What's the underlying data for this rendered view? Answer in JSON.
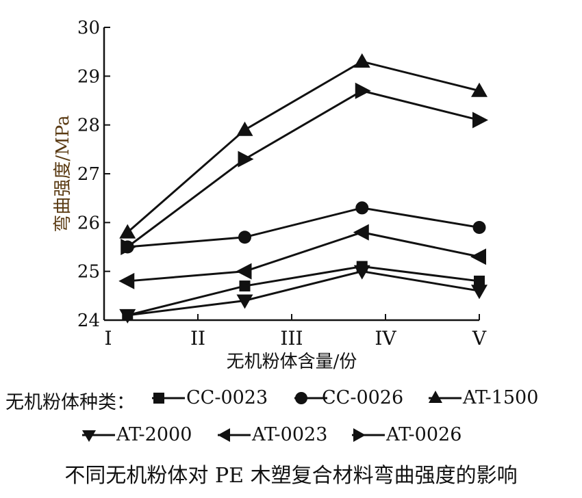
{
  "chart_data": {
    "type": "line",
    "title": "不同无机粉体对 PE 木塑复合材料弯曲强度的影响",
    "xlabel": "无机粉体含量/份",
    "ylabel": "弯曲强度/MPa",
    "ylim": [
      24,
      30
    ],
    "yticks": [
      "24",
      "25",
      "26",
      "27",
      "28",
      "29",
      "30"
    ],
    "xlim": [
      1,
      5
    ],
    "xtick_labels": [
      "I",
      "II",
      "III",
      "IV",
      "V"
    ],
    "x": [
      1.25,
      2.5,
      3.75,
      5
    ],
    "legend_title": "无机粉体种类：",
    "legend_position": "bottom",
    "series": [
      {
        "name": "CC-0023",
        "marker": "square",
        "values": [
          24.1,
          24.7,
          25.1,
          24.8
        ]
      },
      {
        "name": "CC-0026",
        "marker": "circle",
        "values": [
          25.5,
          25.7,
          26.3,
          25.9
        ]
      },
      {
        "name": "AT-1500",
        "marker": "triangle-up",
        "values": [
          25.8,
          27.9,
          29.3,
          28.7
        ]
      },
      {
        "name": "AT-2000",
        "marker": "triangle-down",
        "values": [
          24.1,
          24.4,
          25.0,
          24.6
        ]
      },
      {
        "name": "AT-0023",
        "marker": "triangle-left",
        "values": [
          24.8,
          25.0,
          25.8,
          25.3
        ]
      },
      {
        "name": "AT-0026",
        "marker": "triangle-right",
        "values": [
          25.5,
          27.3,
          28.7,
          28.1
        ]
      }
    ],
    "colors": {
      "line": "#111111",
      "ylabel": "#5a3a12"
    }
  }
}
